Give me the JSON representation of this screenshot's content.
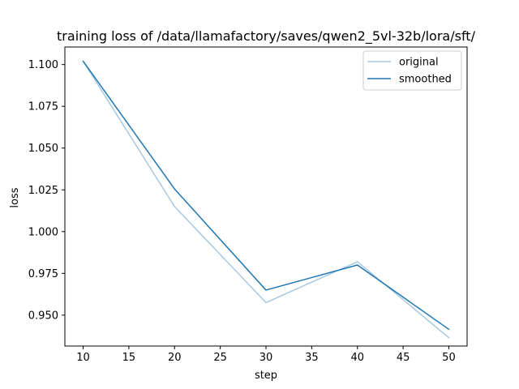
{
  "chart_data": {
    "type": "line",
    "title": "training loss of /data/llamafactory/saves/qwen2_5vl-32b/lora/sft/",
    "xlabel": "step",
    "ylabel": "loss",
    "xlim": [
      8,
      52
    ],
    "ylim": [
      0.9315,
      1.1105
    ],
    "xticks": [
      10,
      15,
      20,
      25,
      30,
      35,
      40,
      45,
      50
    ],
    "yticks": [
      0.95,
      0.975,
      1.0,
      1.025,
      1.05,
      1.075,
      1.1
    ],
    "ytick_labels": [
      "0.950",
      "0.975",
      "1.000",
      "1.025",
      "1.050",
      "1.075",
      "1.100"
    ],
    "grid": false,
    "legend_position": "top-right",
    "x": [
      10,
      20,
      30,
      40,
      50
    ],
    "series": [
      {
        "name": "original",
        "values": [
          1.102,
          1.015,
          0.9575,
          0.982,
          0.9365
        ],
        "color": "#a6c8e3",
        "width": 1.5
      },
      {
        "name": "smoothed",
        "values": [
          1.102,
          1.0255,
          0.965,
          0.98,
          0.9415
        ],
        "color": "#1f77b4",
        "width": 1.5
      }
    ]
  }
}
